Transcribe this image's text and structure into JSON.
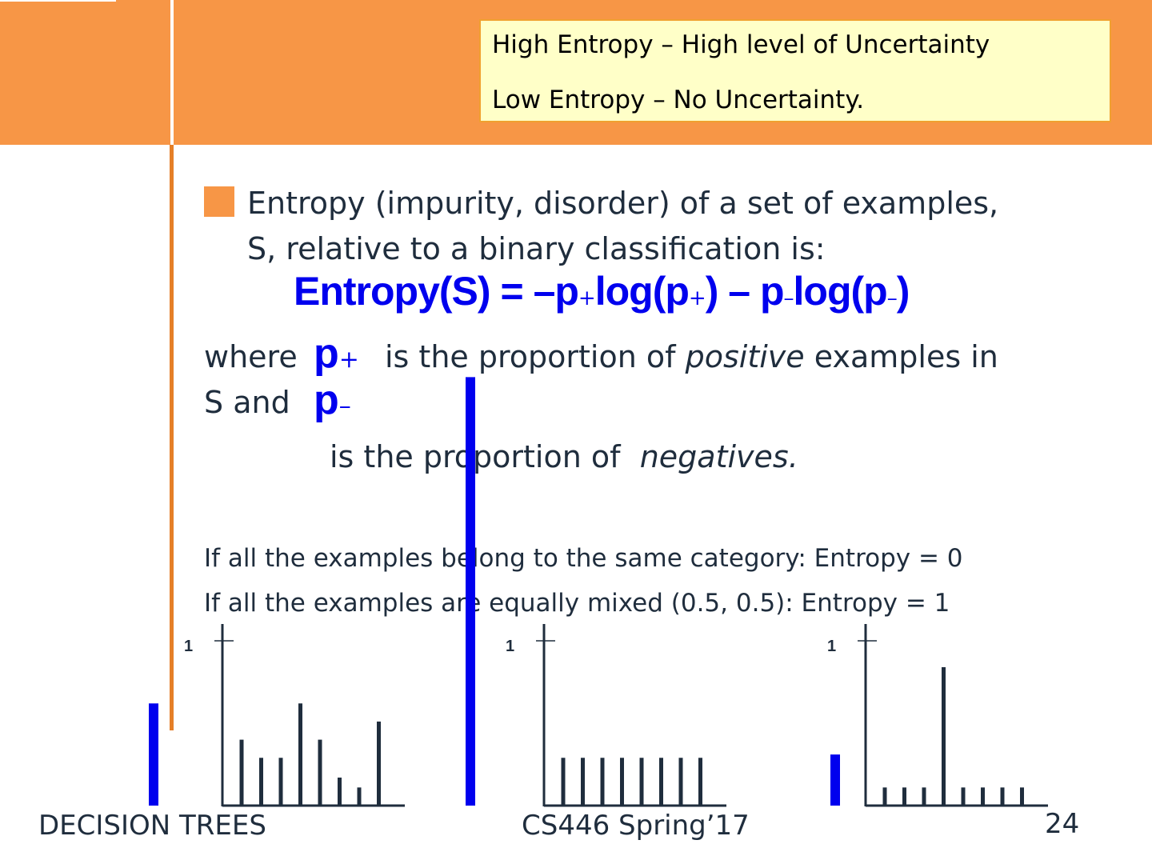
{
  "callout": {
    "line1": "High Entropy – High level of Uncertainty",
    "line2": "Low Entropy – No Uncertainty."
  },
  "body": {
    "definition_line1": "Entropy (impurity, disorder) of a set of examples,",
    "definition_line2": "S, relative to a binary classification is:",
    "formula": {
      "lhs": "Entropy(S)",
      "eq": "=",
      "minus1": "–",
      "p": "p",
      "log_open": "log(p",
      "close": ")",
      "minus2": "–",
      "plus_sub": "+",
      "minus_sub": "–"
    },
    "where_text": "where",
    "where_rest": "is the proportion of",
    "positive_word": "positive",
    "examples_in": "examples in",
    "s_and": "S and",
    "neg_line_prefix": "is the proportion of",
    "negatives_word": "negatives.",
    "fact1": "If all the examples belong to the same category: Entropy = 0",
    "fact2": "If all the examples are equally mixed (0.5, 0.5): Entropy = 1"
  },
  "footer": {
    "left": "DECISION TREES",
    "center": "CS446 Spring’17",
    "page": "24"
  },
  "colors": {
    "orange": "#f79646",
    "blue": "#0000ee",
    "axis": "#1f2d3d"
  },
  "chart_data": [
    {
      "type": "bar",
      "ylim": [
        0,
        1
      ],
      "yticks": [
        "1"
      ],
      "values": [
        0.4,
        0.29,
        0.29,
        0.62,
        0.4,
        0.17,
        0.11,
        0.51
      ],
      "marker_value": 0.62
    },
    {
      "type": "bar",
      "ylim": [
        0,
        1
      ],
      "yticks": [
        "1"
      ],
      "values": [
        0.29,
        0.29,
        0.29,
        0.29,
        0.29,
        0.29,
        0.29,
        0.29
      ],
      "marker_value": 2.6
    },
    {
      "type": "bar",
      "ylim": [
        0,
        1
      ],
      "yticks": [
        "1"
      ],
      "values": [
        0.11,
        0.11,
        0.11,
        0.84,
        0.11,
        0.11,
        0.11,
        0.11
      ],
      "marker_value": 0.31
    }
  ]
}
